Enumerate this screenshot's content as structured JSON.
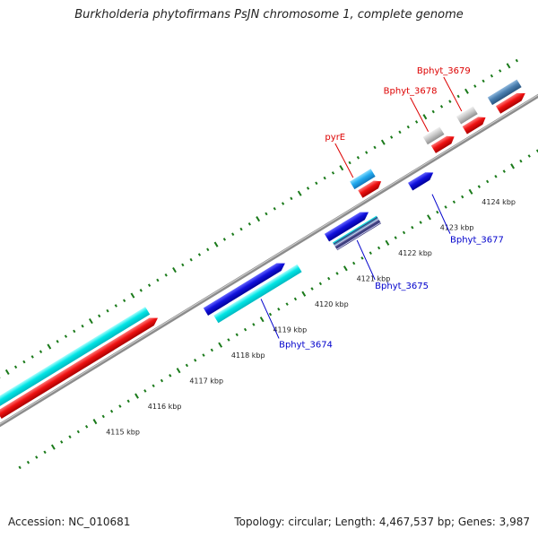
{
  "title": "Burkholderia phytofirmans PsJN chromosome 1, complete genome",
  "accession": "Accession: NC_010681",
  "summary": "Topology: circular; Length: 4,467,537 bp; Genes: 3,987",
  "colors": {
    "backbone": "#8c8c8c",
    "tick": "#1a7a1a",
    "label_forward": "#dd0000",
    "label_reverse": "#0000cc",
    "cyan": "#00e5e5",
    "red": "#ee1111",
    "blue": "#1111dd",
    "skyblue": "#22aaee",
    "gray": "#c8c8c8",
    "steel": "#4a7fb0"
  },
  "ticks": [
    {
      "kbp": 4115,
      "label": "4115 kbp"
    },
    {
      "kbp": 4116,
      "label": "4116 kbp"
    },
    {
      "kbp": 4117,
      "label": "4117 kbp"
    },
    {
      "kbp": 4118,
      "label": "4118 kbp"
    },
    {
      "kbp": 4119,
      "label": "4119 kbp"
    },
    {
      "kbp": 4120,
      "label": "4120 kbp"
    },
    {
      "kbp": 4121,
      "label": "4121 kbp"
    },
    {
      "kbp": 4122,
      "label": "4122 kbp"
    },
    {
      "kbp": 4123,
      "label": "4123 kbp"
    },
    {
      "kbp": 4124,
      "label": "4124 kbp"
    }
  ],
  "features": [
    {
      "track": 2,
      "start": 4113.4,
      "end": 4117.1,
      "color": "cyan",
      "arrow": false
    },
    {
      "track": 1,
      "start": 4113.4,
      "end": 4117.2,
      "color": "red",
      "arrow": true
    },
    {
      "track": -1,
      "start": 4118.1,
      "end": 4120.0,
      "color": "blue",
      "arrow": true
    },
    {
      "track": -2,
      "start": 4118.2,
      "end": 4120.2,
      "color": "cyan",
      "arrow": false
    },
    {
      "track": -1,
      "start": 4121.0,
      "end": 4122.0,
      "color": "blue",
      "arrow": true
    },
    {
      "track": -2,
      "start": 4121.05,
      "end": 4122.1,
      "color": "striped",
      "arrow": false
    },
    {
      "track": 2,
      "start": 4122.0,
      "end": 4122.5,
      "color": "skyblue",
      "arrow": false
    },
    {
      "track": 1,
      "start": 4122.05,
      "end": 4122.55,
      "color": "red",
      "arrow": true
    },
    {
      "track": -1,
      "start": 4123.0,
      "end": 4123.55,
      "color": "blue",
      "arrow": true
    },
    {
      "track": 2,
      "start": 4123.75,
      "end": 4124.15,
      "color": "gray",
      "arrow": false
    },
    {
      "track": 1,
      "start": 4123.8,
      "end": 4124.3,
      "color": "red",
      "arrow": true
    },
    {
      "track": 2,
      "start": 4124.55,
      "end": 4124.95,
      "color": "gray",
      "arrow": false
    },
    {
      "track": 1,
      "start": 4124.55,
      "end": 4125.05,
      "color": "red",
      "arrow": true
    },
    {
      "track": 2,
      "start": 4125.3,
      "end": 4126.0,
      "color": "steel",
      "arrow": false
    },
    {
      "track": 1,
      "start": 4125.35,
      "end": 4126.0,
      "color": "red",
      "arrow": true
    }
  ],
  "labels": [
    {
      "text": "pyrE",
      "strand": "forward",
      "at": 4122.1
    },
    {
      "text": "Bphyt_3678",
      "strand": "forward",
      "at": 4123.9
    },
    {
      "text": "Bphyt_3679",
      "strand": "forward",
      "at": 4124.7
    },
    {
      "text": "Bphyt_3674",
      "strand": "reverse",
      "at": 4119.2
    },
    {
      "text": "Bphyt_3675",
      "strand": "reverse",
      "at": 4121.5
    },
    {
      "text": "Bphyt_3677",
      "strand": "reverse",
      "at": 4123.3
    }
  ]
}
